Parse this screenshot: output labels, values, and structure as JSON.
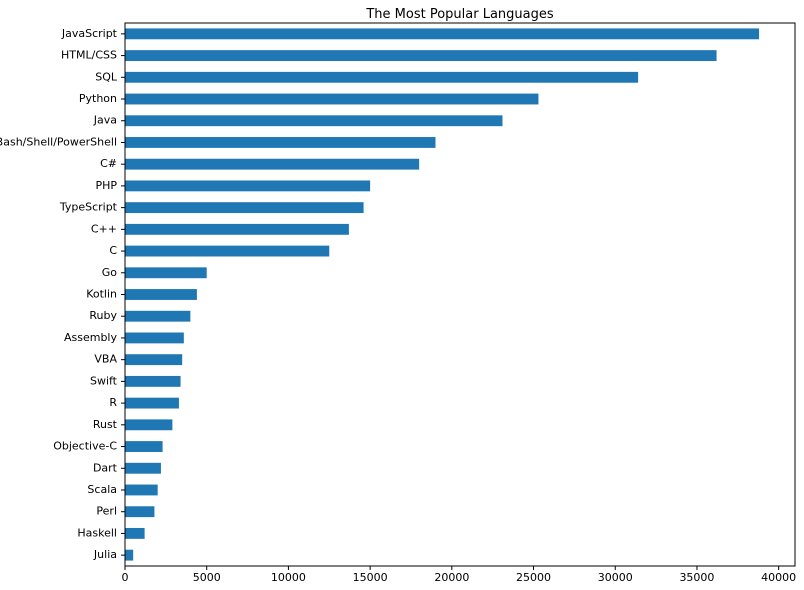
{
  "chart_data": {
    "type": "bar",
    "orientation": "horizontal",
    "title": "The Most Popular Languages",
    "xlabel": "",
    "ylabel": "",
    "xlim": [
      0,
      41000
    ],
    "x_ticks": [
      0,
      5000,
      10000,
      15000,
      20000,
      25000,
      30000,
      35000,
      40000
    ],
    "grid": false,
    "bar_color": "#1f77b4",
    "categories": [
      "JavaScript",
      "HTML/CSS",
      "SQL",
      "Python",
      "Java",
      "Bash/Shell/PowerShell",
      "C#",
      "PHP",
      "TypeScript",
      "C++",
      "C",
      "Go",
      "Kotlin",
      "Ruby",
      "Assembly",
      "VBA",
      "Swift",
      "R",
      "Rust",
      "Objective-C",
      "Dart",
      "Scala",
      "Perl",
      "Haskell",
      "Julia"
    ],
    "values": [
      38800,
      36200,
      31400,
      25300,
      23100,
      19000,
      18000,
      15000,
      14600,
      13700,
      12500,
      5000,
      4400,
      4000,
      3600,
      3500,
      3400,
      3300,
      2900,
      2300,
      2200,
      2000,
      1800,
      1200,
      500
    ]
  }
}
